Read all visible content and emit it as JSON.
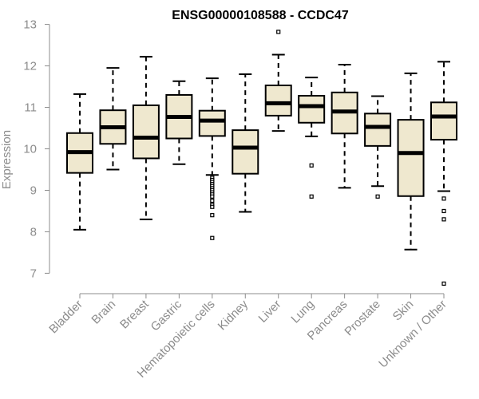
{
  "chart_data": {
    "type": "box",
    "title": "ENSG00000108588 - CCDC47",
    "xlabel": "",
    "ylabel": "Expression",
    "ylim": [
      6.7,
      13.05
    ],
    "yticks": [
      7,
      8,
      9,
      10,
      11,
      12,
      13
    ],
    "grid": false,
    "categories": [
      "Bladder",
      "Brain",
      "Breast",
      "Gastric",
      "Hematopoietic cells",
      "Kidney",
      "Liver",
      "Lung",
      "Pancreas",
      "Prostate",
      "Skin",
      "Unknown / Other"
    ],
    "boxes": [
      {
        "whisker_low": 8.05,
        "q1": 9.42,
        "median": 9.92,
        "q3": 10.38,
        "whisker_high": 11.32,
        "outliers": []
      },
      {
        "whisker_low": 9.5,
        "q1": 10.12,
        "median": 10.52,
        "q3": 10.93,
        "whisker_high": 11.95,
        "outliers": []
      },
      {
        "whisker_low": 8.3,
        "q1": 9.77,
        "median": 10.27,
        "q3": 11.05,
        "whisker_high": 12.22,
        "outliers": []
      },
      {
        "whisker_low": 9.63,
        "q1": 10.25,
        "median": 10.77,
        "q3": 11.3,
        "whisker_high": 11.63,
        "outliers": []
      },
      {
        "whisker_low": 9.37,
        "q1": 10.31,
        "median": 10.68,
        "q3": 10.92,
        "whisker_high": 11.7,
        "outliers": [
          9.3,
          9.25,
          9.2,
          9.15,
          9.1,
          9.05,
          9.0,
          8.95,
          8.9,
          8.85,
          8.75,
          8.65,
          8.6,
          8.4,
          7.85
        ]
      },
      {
        "whisker_low": 8.48,
        "q1": 9.4,
        "median": 10.03,
        "q3": 10.45,
        "whisker_high": 11.8,
        "outliers": []
      },
      {
        "whisker_low": 10.43,
        "q1": 10.8,
        "median": 11.1,
        "q3": 11.53,
        "whisker_high": 12.27,
        "outliers": [
          12.82
        ]
      },
      {
        "whisker_low": 10.3,
        "q1": 10.63,
        "median": 11.03,
        "q3": 11.28,
        "whisker_high": 11.72,
        "outliers": [
          9.6,
          8.85
        ]
      },
      {
        "whisker_low": 9.06,
        "q1": 10.37,
        "median": 10.9,
        "q3": 11.36,
        "whisker_high": 12.03,
        "outliers": []
      },
      {
        "whisker_low": 9.1,
        "q1": 10.07,
        "median": 10.53,
        "q3": 10.85,
        "whisker_high": 11.27,
        "outliers": [
          8.85
        ]
      },
      {
        "whisker_low": 7.57,
        "q1": 8.86,
        "median": 9.9,
        "q3": 10.7,
        "whisker_high": 11.82,
        "outliers": []
      },
      {
        "whisker_low": 8.98,
        "q1": 10.22,
        "median": 10.78,
        "q3": 11.12,
        "whisker_high": 12.1,
        "outliers": [
          8.8,
          8.5,
          8.3,
          6.75
        ]
      }
    ],
    "colors": {
      "box_fill": "#efe8cf",
      "box_stroke": "#000000",
      "axis": "#8c8c8c"
    }
  }
}
